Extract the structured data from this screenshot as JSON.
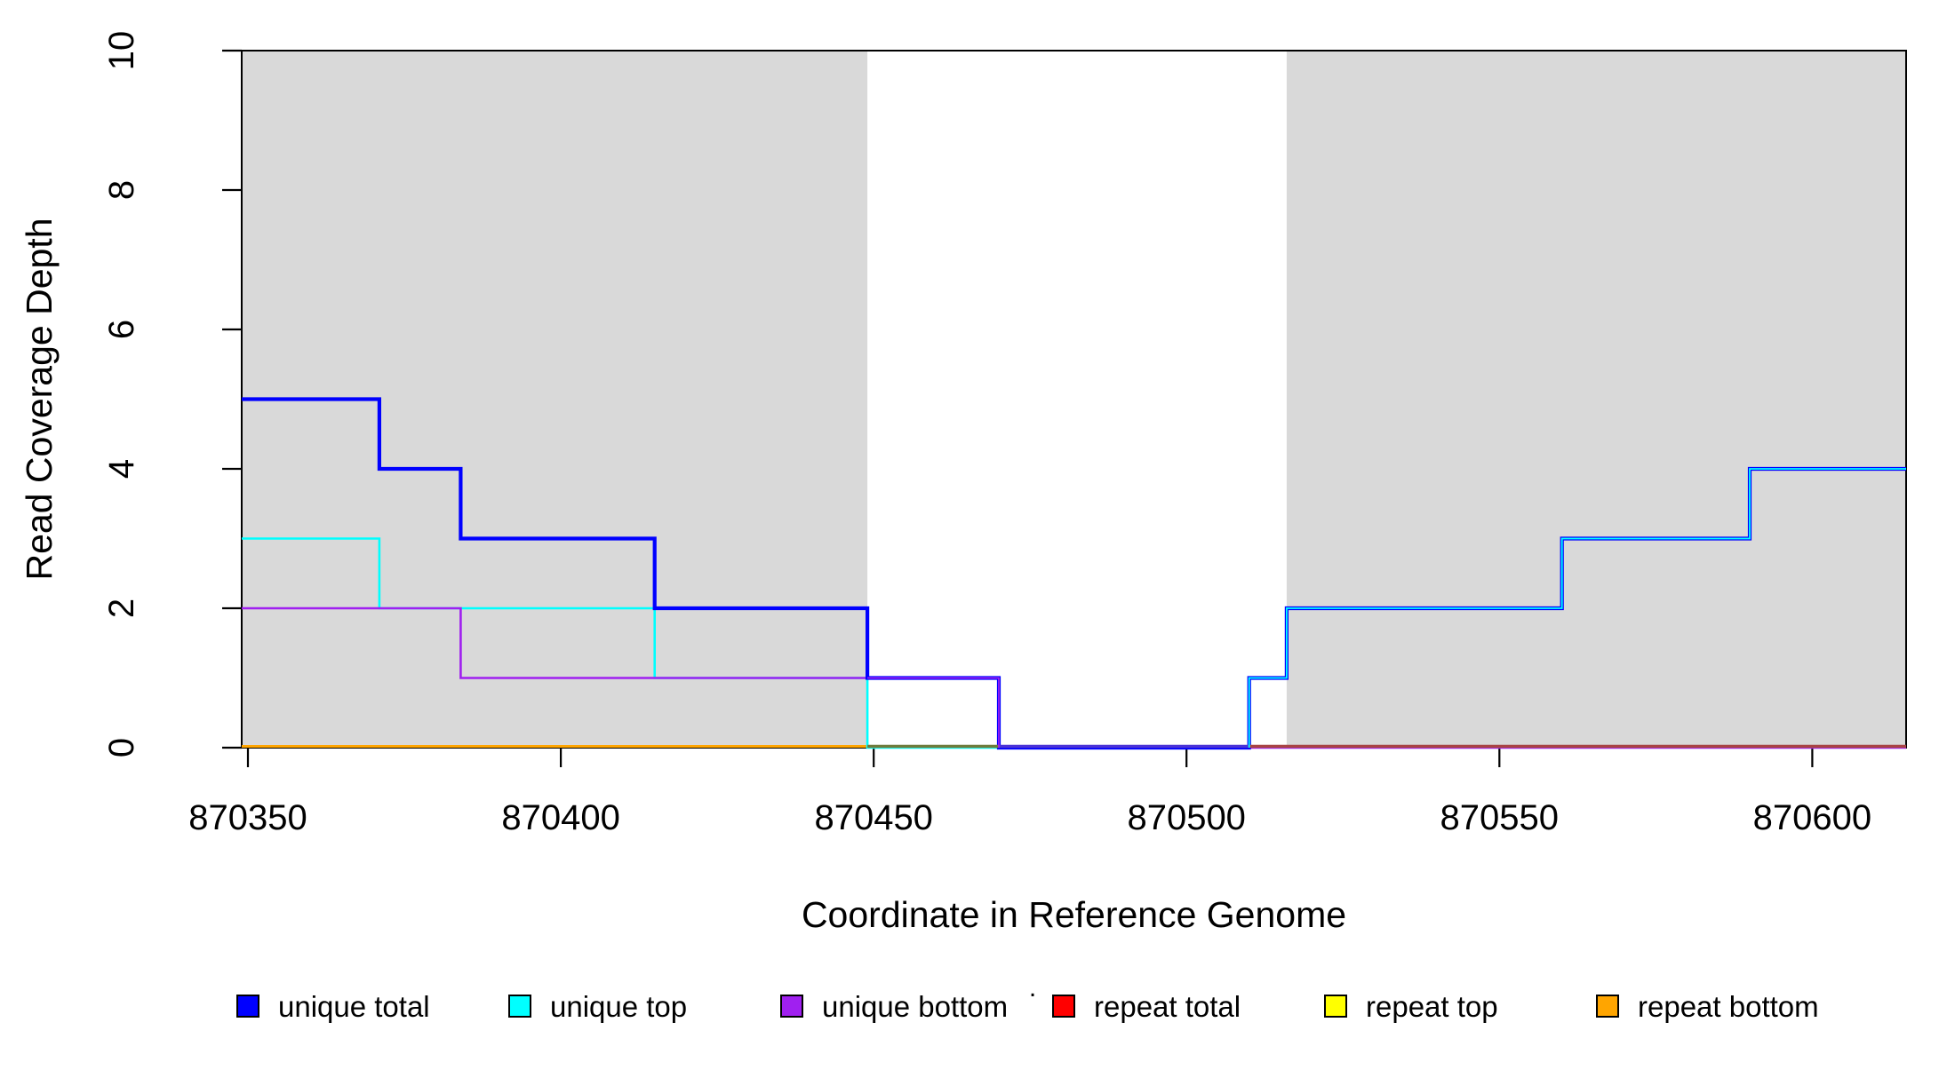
{
  "figure": {
    "background": "#FFFFFF"
  },
  "chart_data": {
    "type": "line",
    "subtype": "step-coverage",
    "title": "",
    "xlabel": "Coordinate in Reference Genome",
    "ylabel": "Read Coverage Depth",
    "xlim": [
      870349,
      870615
    ],
    "ylim": [
      0,
      10
    ],
    "grid": false,
    "x_ticks": {
      "values": [
        870350,
        870400,
        870450,
        870500,
        870550,
        870600
      ],
      "labels": [
        "870350",
        "870400",
        "870450",
        "870500",
        "870550",
        "870600"
      ]
    },
    "y_ticks": {
      "values": [
        0,
        2,
        4,
        6,
        8,
        10
      ],
      "labels": [
        "0",
        "2",
        "4",
        "6",
        "8",
        "10"
      ]
    },
    "shaded_color": "#D9D9D9",
    "shaded_regions": [
      {
        "x0": 870349,
        "x1": 870449
      },
      {
        "x0": 870516,
        "x1": 870615
      }
    ],
    "series": [
      {
        "name": "unique total",
        "color": "#0000FF",
        "width": 4.2,
        "points": [
          [
            870349,
            5
          ],
          [
            870371,
            5
          ],
          [
            870371,
            4
          ],
          [
            870384,
            4
          ],
          [
            870384,
            3
          ],
          [
            870415,
            3
          ],
          [
            870415,
            2
          ],
          [
            870449,
            2
          ],
          [
            870449,
            1
          ],
          [
            870470,
            1
          ],
          [
            870470,
            0
          ],
          [
            870510,
            0
          ],
          [
            870510,
            1
          ],
          [
            870516,
            1
          ],
          [
            870516,
            2
          ],
          [
            870560,
            2
          ],
          [
            870560,
            3
          ],
          [
            870590,
            3
          ],
          [
            870590,
            4
          ],
          [
            870615,
            4
          ]
        ]
      },
      {
        "name": "unique top",
        "color": "#00FFFF",
        "width": 2.6,
        "points": [
          [
            870349,
            3
          ],
          [
            870371,
            3
          ],
          [
            870371,
            2
          ],
          [
            870415,
            2
          ],
          [
            870415,
            1
          ],
          [
            870449,
            1
          ],
          [
            870449,
            0
          ],
          [
            870510,
            0
          ],
          [
            870510,
            1
          ],
          [
            870516,
            1
          ],
          [
            870516,
            2
          ],
          [
            870560,
            2
          ],
          [
            870560,
            3
          ],
          [
            870590,
            3
          ],
          [
            870590,
            4
          ],
          [
            870615,
            4
          ]
        ],
        "overlay_on_total": [
          [
            870510,
            0
          ],
          [
            870510,
            1
          ],
          [
            870516,
            1
          ],
          [
            870516,
            2
          ],
          [
            870560,
            2
          ],
          [
            870560,
            3
          ],
          [
            870590,
            3
          ],
          [
            870590,
            4
          ],
          [
            870615,
            4
          ]
        ]
      },
      {
        "name": "unique bottom",
        "color": "#A020F0",
        "width": 2.6,
        "points": [
          [
            870349,
            2
          ],
          [
            870384,
            2
          ],
          [
            870384,
            1
          ],
          [
            870470,
            1
          ],
          [
            870470,
            0
          ],
          [
            870615,
            0
          ]
        ],
        "overlay_on_total": [
          [
            870449,
            1
          ],
          [
            870470,
            1
          ],
          [
            870470,
            0
          ]
        ]
      },
      {
        "name": "repeat total",
        "color": "#FF0000",
        "width": 3,
        "points": [
          [
            870349,
            0
          ],
          [
            870615,
            0
          ]
        ]
      },
      {
        "name": "repeat top",
        "color": "#FFFF00",
        "width": 3,
        "points": [
          [
            870349,
            0
          ],
          [
            870615,
            0
          ]
        ]
      },
      {
        "name": "repeat bottom",
        "color": "#FFA500",
        "width": 3,
        "points": [
          [
            870349,
            0
          ],
          [
            870615,
            0
          ]
        ]
      }
    ],
    "baseline_blend_segments": [
      {
        "x0": 870449,
        "x1": 870470,
        "color": "#6F7B3C"
      },
      {
        "x0": 870470,
        "x1": 870510,
        "color": "#4A33D6"
      },
      {
        "x0": 870510,
        "x1": 870615,
        "color": "#A84444"
      }
    ],
    "legend": {
      "items": [
        {
          "label": "unique total",
          "color": "#0000FF"
        },
        {
          "label": "unique top",
          "color": "#00FFFF"
        },
        {
          "label": "unique bottom",
          "color": "#A020F0"
        },
        {
          "label": "repeat total",
          "color": "#FF0000"
        },
        {
          "label": "repeat top",
          "color": "#FFFF00"
        },
        {
          "label": "repeat bottom",
          "color": "#FFA500"
        }
      ]
    },
    "stray_mark": "."
  }
}
